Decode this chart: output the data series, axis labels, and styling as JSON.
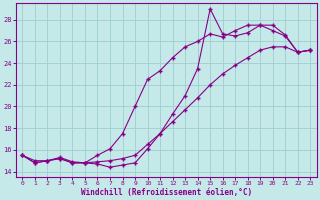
{
  "title": "",
  "xlabel": "Windchill (Refroidissement éolien,°C)",
  "ylabel": "",
  "xlim": [
    -0.5,
    23.5
  ],
  "ylim": [
    13.5,
    29.5
  ],
  "xticks": [
    0,
    1,
    2,
    3,
    4,
    5,
    6,
    7,
    8,
    9,
    10,
    11,
    12,
    13,
    14,
    15,
    16,
    17,
    18,
    19,
    20,
    21,
    22,
    23
  ],
  "yticks": [
    14,
    16,
    18,
    20,
    22,
    24,
    26,
    28
  ],
  "background_color": "#c5e8e8",
  "grid_color": "#9ecece",
  "line_color": "#880088",
  "curve1_x": [
    0,
    1,
    2,
    3,
    4,
    5,
    6,
    7,
    8,
    9,
    10,
    11,
    12,
    13,
    14,
    15,
    16,
    17,
    18,
    19,
    20,
    21,
    22,
    23
  ],
  "curve1_y": [
    15.5,
    15.0,
    15.0,
    15.3,
    14.9,
    14.8,
    14.7,
    14.4,
    14.6,
    14.8,
    16.1,
    17.5,
    19.3,
    21.0,
    23.5,
    29.0,
    26.7,
    26.5,
    26.8,
    27.5,
    27.0,
    26.5,
    25.0,
    25.2
  ],
  "curve2_x": [
    0,
    1,
    2,
    3,
    4,
    5,
    6,
    7,
    8,
    9,
    10,
    11,
    12,
    13,
    14,
    15,
    16,
    17,
    18,
    19,
    20,
    21,
    22,
    23
  ],
  "curve2_y": [
    15.5,
    14.8,
    15.0,
    15.2,
    14.8,
    14.8,
    15.5,
    16.1,
    17.5,
    20.0,
    22.5,
    23.3,
    24.5,
    25.5,
    26.0,
    26.7,
    26.4,
    27.0,
    27.5,
    27.5,
    27.5,
    26.6,
    25.0,
    25.2
  ],
  "curve3_x": [
    0,
    1,
    2,
    3,
    4,
    5,
    6,
    7,
    8,
    9,
    10,
    11,
    12,
    13,
    14,
    15,
    16,
    17,
    18,
    19,
    20,
    21,
    22,
    23
  ],
  "curve3_y": [
    15.5,
    14.8,
    15.0,
    15.2,
    14.8,
    14.8,
    14.9,
    15.0,
    15.2,
    15.5,
    16.5,
    17.5,
    18.6,
    19.7,
    20.8,
    22.0,
    23.0,
    23.8,
    24.5,
    25.2,
    25.5,
    25.5,
    25.0,
    25.2
  ]
}
